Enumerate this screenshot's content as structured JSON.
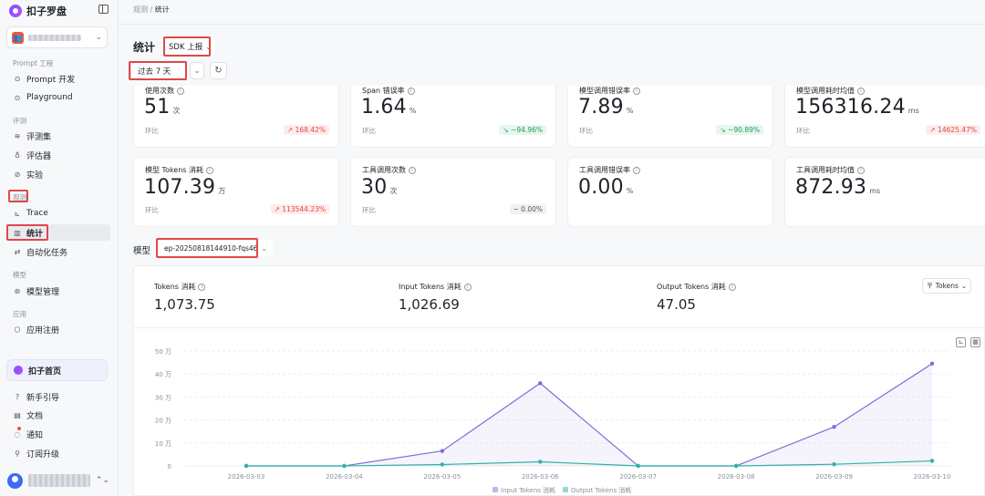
{
  "app": {
    "name": "扣子罗盘"
  },
  "workspace": {
    "avatar_glyph": "👥",
    "chev": "⌃⌄"
  },
  "sidebar": {
    "groups": [
      {
        "title": "Prompt 工程"
      },
      {
        "title": "评测"
      },
      {
        "title": "观测"
      },
      {
        "title": "模型"
      },
      {
        "title": "应用"
      }
    ],
    "items": [
      {
        "label": "Prompt 开发",
        "icon": "⊙"
      },
      {
        "label": "Playground",
        "icon": "⊙"
      },
      {
        "label": "评测集",
        "icon": "≋"
      },
      {
        "label": "评估器",
        "icon": "♁"
      },
      {
        "label": "实验",
        "icon": "⊘"
      },
      {
        "label": "Trace",
        "icon": "⊾"
      },
      {
        "label": "统计",
        "icon": "▥"
      },
      {
        "label": "自动化任务",
        "icon": "⇄"
      },
      {
        "label": "模型管理",
        "icon": "⊛"
      },
      {
        "label": "应用注册",
        "icon": "⬡"
      }
    ],
    "home": "扣子首页",
    "bottom": [
      {
        "label": "新手引导",
        "icon": "?"
      },
      {
        "label": "文档",
        "icon": "▤"
      },
      {
        "label": "通知",
        "icon": "◌"
      },
      {
        "label": "订阅升级",
        "icon": "⚲"
      }
    ]
  },
  "breadcrumb": {
    "parent": "观测",
    "sep": "/",
    "current": "统计"
  },
  "page": {
    "title": "统计",
    "source": "SDK 上报",
    "range": "过去 7 天",
    "refresh_icon": "↻"
  },
  "metrics": [
    {
      "label": "使用次数",
      "value": "51",
      "unit": "次",
      "cmp": "环比",
      "delta": "↗ 168.42%",
      "trend": "up"
    },
    {
      "label": "Span 错误率",
      "value": "1.64",
      "unit": "%",
      "cmp": "环比",
      "delta": "↘ −94.96%",
      "trend": "down"
    },
    {
      "label": "模型调用错误率",
      "value": "7.89",
      "unit": "%",
      "cmp": "环比",
      "delta": "↘ −90.89%",
      "trend": "down"
    },
    {
      "label": "模型调用耗时均值",
      "value": "156316.24",
      "unit": "ms",
      "cmp": "环比",
      "delta": "↗ 14625.47%",
      "trend": "up"
    },
    {
      "label": "模型 Tokens 消耗",
      "value": "107.39",
      "unit": "万",
      "cmp": "环比",
      "delta": "↗ 113544.23%",
      "trend": "up"
    },
    {
      "label": "工具调用次数",
      "value": "30",
      "unit": "次",
      "cmp": "环比",
      "delta": "− 0.00%",
      "trend": "flat"
    },
    {
      "label": "工具调用错误率",
      "value": "0.00",
      "unit": "%",
      "cmp": "",
      "delta": "",
      "trend": "none"
    },
    {
      "label": "工具调用耗时均值",
      "value": "872.93",
      "unit": "ms",
      "cmp": "",
      "delta": "",
      "trend": "none"
    }
  ],
  "model": {
    "label": "模型",
    "selected": "ep-20250818144910-fqs46"
  },
  "tokens": {
    "total_label": "Tokens 消耗",
    "total_value": "1,073.75",
    "input_label": "Input Tokens 消耗",
    "input_value": "1,026.69",
    "output_label": "Output Tokens 消耗",
    "output_value": "47.05",
    "unit_select": "〒 Tokens"
  },
  "colors": {
    "input": "#7b6fd6",
    "output": "#2cb3a8",
    "red": "#e04848"
  },
  "chart_data": {
    "type": "line",
    "categories": [
      "2026-03-03",
      "2026-03-04",
      "2026-03-05",
      "2026-03-06",
      "2026-03-07",
      "2026-03-08",
      "2026-03-09",
      "2026-03-10"
    ],
    "y_ticks": [
      "0",
      "10 万",
      "20 万",
      "30 万",
      "40 万",
      "50 万"
    ],
    "ylim": [
      0,
      50
    ],
    "series": [
      {
        "name": "Input Tokens 消耗",
        "values": [
          0,
          0,
          6.5,
          36,
          0,
          0,
          17,
          44.5
        ]
      },
      {
        "name": "Output Tokens 消耗",
        "values": [
          0,
          0,
          0.6,
          1.8,
          0,
          0,
          0.7,
          2.2
        ]
      }
    ]
  }
}
